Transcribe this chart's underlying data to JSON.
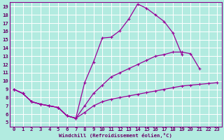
{
  "bg_color": "#b2ebe0",
  "grid_color": "#ffffff",
  "line_color": "#990099",
  "xlabel": "Windchill (Refroidissement éolien,°C)",
  "xlim": [
    -0.5,
    23.5
  ],
  "ylim": [
    4.5,
    19.5
  ],
  "xticks": [
    0,
    1,
    2,
    3,
    4,
    5,
    6,
    7,
    8,
    9,
    10,
    11,
    12,
    13,
    14,
    15,
    16,
    17,
    18,
    19,
    20,
    21,
    22,
    23
  ],
  "yticks": [
    5,
    6,
    7,
    8,
    9,
    10,
    11,
    12,
    13,
    14,
    15,
    16,
    17,
    18,
    19
  ],
  "upper_x": [
    0,
    1,
    2,
    3,
    4,
    5,
    6,
    7,
    8,
    9,
    10,
    11,
    12,
    13,
    14,
    15,
    16,
    17,
    18,
    19,
    20
  ],
  "upper_y": [
    9.0,
    8.5,
    7.5,
    7.2,
    7.0,
    6.8,
    5.8,
    5.5,
    9.8,
    12.3,
    15.2,
    15.3,
    16.1,
    17.5,
    19.3,
    18.8,
    18.0,
    17.2,
    15.8,
    13.2,
    null
  ],
  "middle_x": [
    0,
    1,
    2,
    3,
    4,
    5,
    6,
    7,
    8,
    9,
    10,
    11,
    12,
    13,
    14,
    15,
    16,
    17,
    18,
    19,
    20,
    21,
    22,
    23
  ],
  "middle_y": [
    9.0,
    8.5,
    7.5,
    7.2,
    7.0,
    6.8,
    5.8,
    5.5,
    7.0,
    8.5,
    9.5,
    10.5,
    11.0,
    11.5,
    12.0,
    12.5,
    13.0,
    13.2,
    13.5,
    13.5,
    13.3,
    11.5,
    null,
    null
  ],
  "lower_x": [
    0,
    1,
    2,
    3,
    4,
    5,
    6,
    7,
    8,
    9,
    10,
    11,
    12,
    13,
    14,
    15,
    16,
    17,
    18,
    19,
    20,
    21,
    22,
    23
  ],
  "lower_y": [
    9.0,
    8.5,
    7.5,
    7.2,
    7.0,
    6.8,
    5.8,
    5.5,
    6.2,
    7.0,
    7.5,
    7.8,
    8.0,
    8.2,
    8.4,
    8.6,
    8.8,
    9.0,
    9.2,
    9.4,
    9.5,
    9.6,
    9.7,
    9.8
  ]
}
